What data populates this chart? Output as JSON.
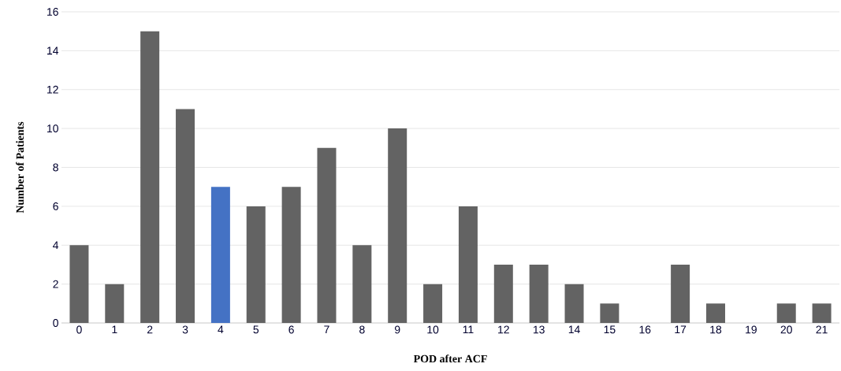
{
  "chart_data": {
    "type": "bar",
    "xlabel": "POD after ACF",
    "ylabel": "Number of Patients",
    "categories": [
      "0",
      "1",
      "2",
      "3",
      "4",
      "5",
      "6",
      "7",
      "8",
      "9",
      "10",
      "11",
      "12",
      "13",
      "14",
      "15",
      "16",
      "17",
      "18",
      "19",
      "20",
      "21"
    ],
    "values": [
      4,
      2,
      15,
      11,
      7,
      6,
      7,
      9,
      4,
      10,
      2,
      6,
      3,
      3,
      2,
      1,
      0,
      3,
      1,
      0,
      1,
      1
    ],
    "colors": [
      "#636363",
      "#636363",
      "#636363",
      "#636363",
      "#4472c4",
      "#636363",
      "#636363",
      "#636363",
      "#636363",
      "#636363",
      "#636363",
      "#636363",
      "#636363",
      "#636363",
      "#636363",
      "#636363",
      "#636363",
      "#636363",
      "#636363",
      "#636363",
      "#636363",
      "#636363"
    ],
    "ylim": [
      0,
      16
    ],
    "yticks": [
      0,
      2,
      4,
      6,
      8,
      10,
      12,
      14,
      16
    ],
    "grid": "y"
  }
}
